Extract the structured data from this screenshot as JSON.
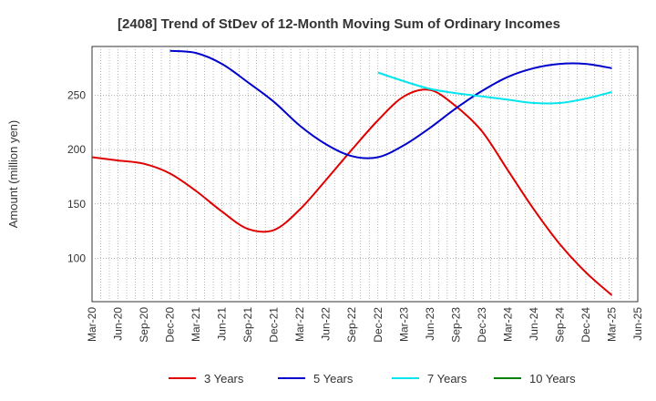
{
  "chart_data": {
    "type": "line",
    "title": "[2408]  Trend of StDev of 12-Month Moving Sum of Ordinary Incomes",
    "ylabel": "Amount (million yen)",
    "xlabel": "",
    "x_ticks": [
      "Mar-20",
      "Jun-20",
      "Sep-20",
      "Dec-20",
      "Mar-21",
      "Jun-21",
      "Sep-21",
      "Dec-21",
      "Mar-22",
      "Jun-22",
      "Sep-22",
      "Dec-22",
      "Mar-23",
      "Jun-23",
      "Sep-23",
      "Dec-23",
      "Mar-24",
      "Jun-24",
      "Sep-24",
      "Dec-24",
      "Mar-25",
      "Jun-25"
    ],
    "y_ticks": [
      100,
      150,
      200,
      250
    ],
    "ylim": [
      60,
      295
    ],
    "grid": true,
    "legend_position": "bottom",
    "series": [
      {
        "name": "3 Years",
        "color": "#e00000",
        "x": [
          "Mar-20",
          "Jun-20",
          "Sep-20",
          "Dec-20",
          "Mar-21",
          "Jun-21",
          "Sep-21",
          "Dec-21",
          "Mar-22",
          "Jun-22",
          "Sep-22",
          "Dec-22",
          "Mar-23",
          "Jun-23",
          "Sep-23",
          "Dec-23",
          "Mar-24",
          "Jun-24",
          "Sep-24",
          "Dec-24",
          "Mar-25"
        ],
        "values": [
          193,
          190,
          187,
          178,
          162,
          143,
          127,
          126,
          145,
          172,
          200,
          227,
          249,
          255,
          240,
          217,
          181,
          145,
          113,
          87,
          66
        ]
      },
      {
        "name": "5 Years",
        "color": "#0000cc",
        "x": [
          "Dec-20",
          "Mar-21",
          "Jun-21",
          "Sep-21",
          "Dec-21",
          "Mar-22",
          "Jun-22",
          "Sep-22",
          "Dec-22",
          "Mar-23",
          "Jun-23",
          "Sep-23",
          "Dec-23",
          "Mar-24",
          "Jun-24",
          "Sep-24",
          "Dec-24",
          "Mar-25"
        ],
        "values": [
          291,
          289,
          279,
          262,
          244,
          222,
          205,
          194,
          193,
          204,
          220,
          238,
          254,
          267,
          275,
          279,
          279,
          275
        ]
      },
      {
        "name": "7 Years",
        "color": "#00e5ee",
        "x": [
          "Dec-22",
          "Mar-23",
          "Jun-23",
          "Sep-23",
          "Dec-23",
          "Mar-24",
          "Jun-24",
          "Sep-24",
          "Dec-24",
          "Mar-25"
        ],
        "values": [
          271,
          263,
          256,
          252,
          249,
          246,
          243,
          243,
          247,
          253
        ]
      },
      {
        "name": "10 Years",
        "color": "#008000",
        "x": [],
        "values": []
      }
    ]
  }
}
